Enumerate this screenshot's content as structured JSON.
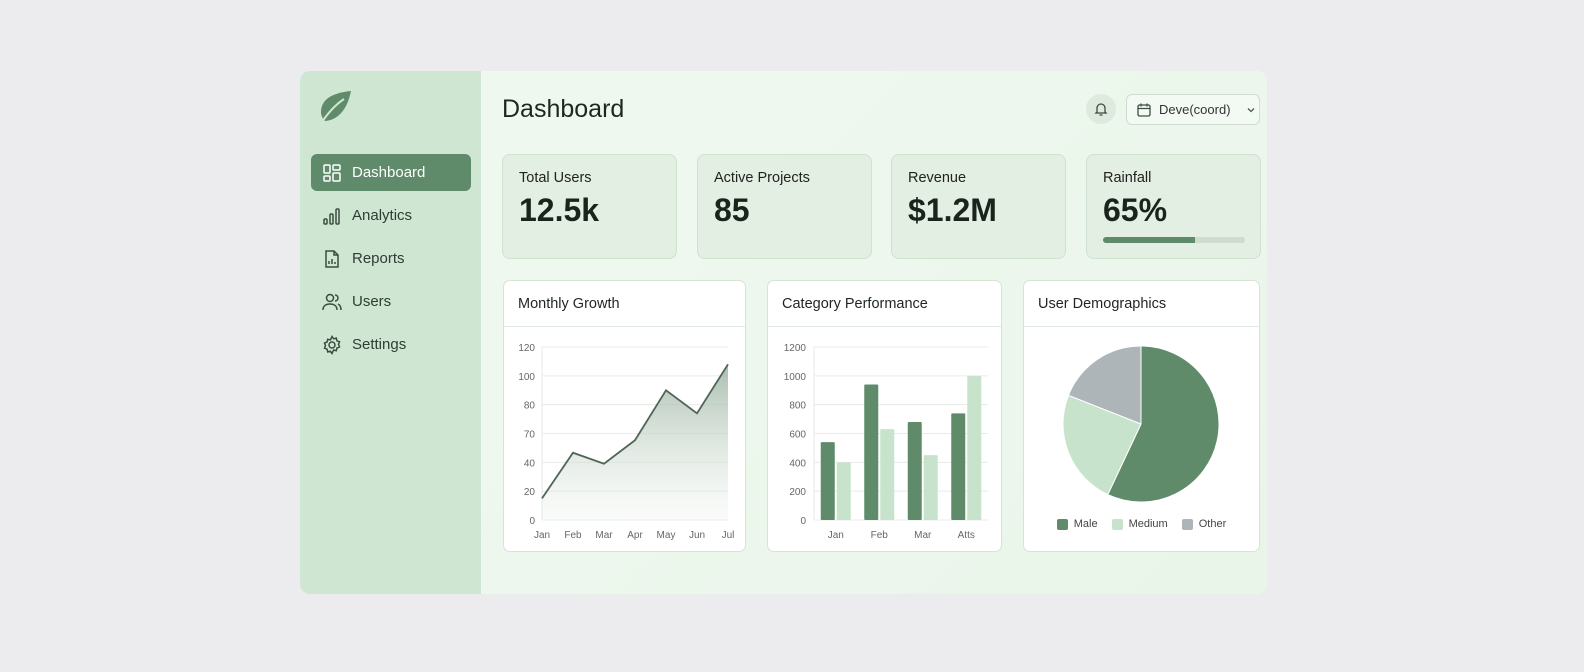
{
  "sidebar": {
    "items": [
      {
        "label": "Dashboard",
        "icon": "dashboard-icon",
        "active": true
      },
      {
        "label": "Analytics",
        "icon": "bar-chart-icon"
      },
      {
        "label": "Reports",
        "icon": "report-icon"
      },
      {
        "label": "Users",
        "icon": "users-icon"
      },
      {
        "label": "Settings",
        "icon": "gear-icon"
      }
    ]
  },
  "header": {
    "title": "Dashboard",
    "date_select": "Deve(coord)"
  },
  "stats": [
    {
      "label": "Total Users",
      "value": "12.5k"
    },
    {
      "label": "Active Projects",
      "value": "85"
    },
    {
      "label": "Revenue",
      "value": "$1.2M"
    },
    {
      "label": "Rainfall",
      "value": "65%",
      "progress": 0.65
    }
  ],
  "colors": {
    "accent": "#5f8b6b",
    "light": "#c8e3cc",
    "other": "#adb5b9",
    "sidebar": "#cfe6d3"
  },
  "chart_data": [
    {
      "type": "area",
      "title": "Monthly Growth",
      "categories": [
        "Jan",
        "Feb",
        "Mar",
        "Apr",
        "May",
        "Jun",
        "Jul"
      ],
      "values": [
        15,
        50,
        39,
        63,
        90,
        77,
        108
      ],
      "yticks": [
        "0",
        "20",
        "40",
        "70",
        "80",
        "100",
        "120"
      ],
      "grid": true
    },
    {
      "type": "bar",
      "title": "Category Performance",
      "categories": [
        "Jan",
        "Feb",
        "Mar",
        "Atts"
      ],
      "series": [
        {
          "values": [
            540,
            940,
            680,
            740
          ],
          "color": "#5f8b6b"
        },
        {
          "values": [
            400,
            630,
            450,
            1000
          ],
          "color": "#c8e3cc"
        }
      ],
      "yticks": [
        "0",
        "200",
        "400",
        "600",
        "800",
        "1000",
        "1200"
      ],
      "ylim": [
        0,
        1200
      ],
      "grid": true
    },
    {
      "type": "pie",
      "title": "User Demographics",
      "slices": [
        {
          "name": "Male",
          "value": 57,
          "color": "#5f8b6b"
        },
        {
          "name": "Medium",
          "value": 24,
          "color": "#c8e3cc"
        },
        {
          "name": "Other",
          "value": 19,
          "color": "#adb5b9"
        }
      ],
      "legend": "bottom"
    }
  ]
}
